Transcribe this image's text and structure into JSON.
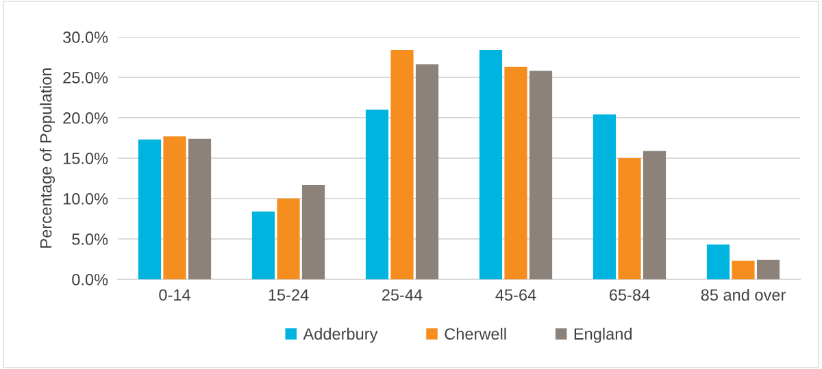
{
  "chart_data": {
    "type": "bar",
    "ylabel": "Percentage of Population",
    "categories": [
      "0-14",
      "15-24",
      "25-44",
      "45-64",
      "65-84",
      "85 and over"
    ],
    "series": [
      {
        "name": "Adderbury",
        "color": "#00b4e0",
        "values": [
          17.3,
          8.4,
          21.0,
          28.4,
          20.4,
          4.3
        ]
      },
      {
        "name": "Cherwell",
        "color": "#f58d1f",
        "values": [
          17.7,
          10.0,
          28.4,
          26.3,
          15.0,
          2.3
        ]
      },
      {
        "name": "England",
        "color": "#8c8279",
        "values": [
          17.4,
          11.7,
          26.6,
          25.8,
          15.9,
          2.4
        ]
      }
    ],
    "ylim": [
      0,
      30
    ],
    "yticks": [
      {
        "value": 0,
        "label": "0.0%"
      },
      {
        "value": 5,
        "label": "5.0%"
      },
      {
        "value": 10,
        "label": "10.0%"
      },
      {
        "value": 15,
        "label": "15.0%"
      },
      {
        "value": 20,
        "label": "20.0%"
      },
      {
        "value": 25,
        "label": "25.0%"
      },
      {
        "value": 30,
        "label": "30.0%"
      }
    ],
    "grid": "y",
    "legend": "bottom"
  }
}
